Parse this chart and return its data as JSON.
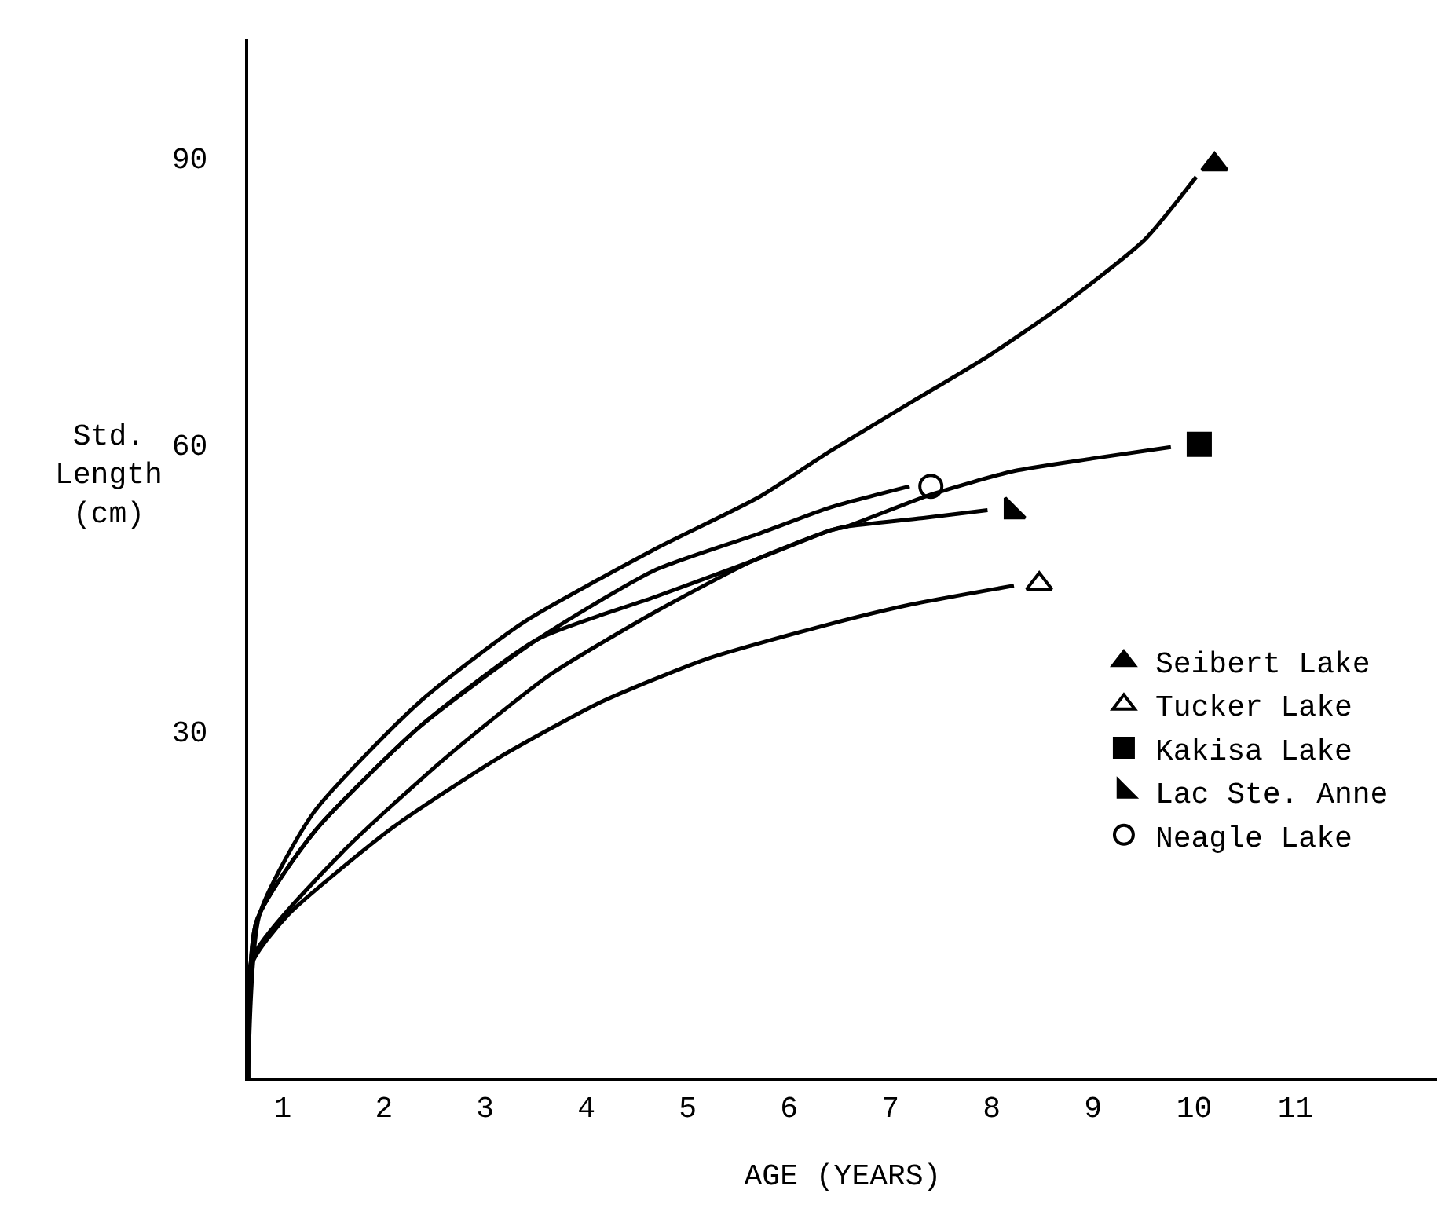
{
  "chart_data": {
    "type": "line",
    "xlabel": "AGE (YEARS)",
    "ylabel": "Std.\nLength\n(cm)",
    "xlim": [
      0.66,
      12.4
    ],
    "ylim": [
      -6.3,
      102.4
    ],
    "xticks": [
      1,
      2,
      3,
      4,
      5,
      6,
      7,
      8,
      9,
      10,
      11
    ],
    "yticks": [
      30,
      60,
      90
    ],
    "grid": false,
    "legend": "right",
    "line_style": "solid",
    "series": [
      {
        "color": "#000000",
        "x": [
          0.66,
          0.77,
          1.31,
          2.35,
          3.37,
          4.67,
          5.69,
          6.41,
          7.19,
          7.96,
          8.73,
          9.51,
          10.02
        ],
        "values": [
          -6.3,
          10.7,
          21.5,
          33.0,
          41.3,
          49.0,
          54.4,
          59.3,
          64.3,
          69.2,
          74.8,
          81.4,
          88.0
        ]
      },
      {
        "color": "#000000",
        "x": [
          0.66,
          0.7,
          1.05,
          2.09,
          3.12,
          4.14,
          5.18,
          6.41,
          7.19,
          8.22
        ],
        "values": [
          -6.3,
          5.7,
          10.7,
          19.9,
          27.1,
          33.0,
          37.5,
          41.2,
          43.2,
          45.2
        ]
      },
      {
        "color": "#000000",
        "x": [
          0.66,
          0.7,
          1.58,
          2.6,
          3.63,
          4.67,
          5.64,
          6.41,
          6.57,
          7.39,
          8.22,
          8.99,
          9.77
        ],
        "values": [
          -6.3,
          6.2,
          17.2,
          27.1,
          35.8,
          42.4,
          47.8,
          51.0,
          51.4,
          54.7,
          57.2,
          58.5,
          59.7
        ]
      },
      {
        "color": "#000000",
        "x": [
          0.66,
          0.74,
          1.31,
          2.35,
          3.52,
          4.67,
          5.64,
          6.41,
          6.57,
          7.34,
          7.96
        ],
        "values": [
          -6.3,
          10.0,
          19.4,
          30.4,
          39.6,
          44.0,
          47.8,
          51.0,
          51.4,
          52.3,
          53.1
        ]
      },
      {
        "color": "#000000",
        "x": [
          0.66,
          0.74,
          1.31,
          2.35,
          3.52,
          4.67,
          5.69,
          6.41,
          7.19
        ],
        "values": [
          -6.3,
          10.0,
          19.4,
          30.4,
          39.6,
          46.8,
          50.6,
          53.4,
          55.6
        ]
      },
      {
        "type": "scatter",
        "name": "Seibert Lake",
        "color": "#000000",
        "marker": "triangle",
        "x": [
          10.2
        ],
        "values": [
          89.3
        ]
      },
      {
        "type": "scatter",
        "name": "Tucker Lake",
        "color": "#000000",
        "marker": "triangle-open",
        "x": [
          8.47
        ],
        "values": [
          45.4
        ]
      },
      {
        "type": "scatter",
        "name": "Kakisa Lake",
        "color": "#000000",
        "marker": "square",
        "x": [
          10.05
        ],
        "values": [
          60.0
        ]
      },
      {
        "type": "scatter",
        "name": "Lac Ste. Anne",
        "color": "#000000",
        "marker": "triangle-sw",
        "x": [
          8.2
        ],
        "values": [
          53.0
        ]
      },
      {
        "type": "scatter",
        "name": "Neagle Lake",
        "color": "#000000",
        "marker": "circle-open",
        "x": [
          7.4
        ],
        "values": [
          55.6
        ]
      }
    ]
  }
}
